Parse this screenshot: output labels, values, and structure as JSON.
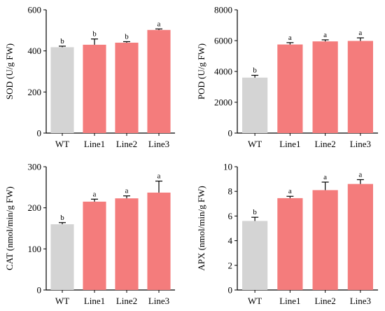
{
  "colors": {
    "wt": "#d4d4d4",
    "line": "#f47c7c",
    "axis": "#000000"
  },
  "chart_data": [
    {
      "type": "bar",
      "categories": [
        "WT",
        "Line1",
        "Line2",
        "Line3"
      ],
      "values": [
        418,
        430,
        440,
        502
      ],
      "errors": [
        5,
        28,
        5,
        5
      ],
      "letters": [
        "b",
        "b",
        "b",
        "a"
      ],
      "ylabel": "SOD (U/g FW)",
      "ylim": [
        0,
        600
      ],
      "yticks": [
        "0",
        "200",
        "400",
        "600"
      ],
      "ytick_values": [
        0,
        200,
        400,
        600
      ]
    },
    {
      "type": "bar",
      "categories": [
        "WT",
        "Line1",
        "Line2",
        "Line3"
      ],
      "values": [
        3600,
        5750,
        5950,
        5980
      ],
      "errors": [
        150,
        120,
        100,
        200
      ],
      "letters": [
        "b",
        "a",
        "a",
        "a"
      ],
      "ylabel": "POD (U/g FW)",
      "ylim": [
        0,
        8000
      ],
      "yticks": [
        "0",
        "2000",
        "4000",
        "6000",
        "8000"
      ],
      "ytick_values": [
        0,
        2000,
        4000,
        6000,
        8000
      ]
    },
    {
      "type": "bar",
      "categories": [
        "WT",
        "Line1",
        "Line2",
        "Line3"
      ],
      "values": [
        160,
        215,
        223,
        237
      ],
      "errors": [
        4,
        6,
        6,
        28
      ],
      "letters": [
        "b",
        "a",
        "a",
        "a"
      ],
      "ylabel": "CAT (nmol/min/g FW)",
      "ylim": [
        0,
        300
      ],
      "yticks": [
        "0",
        "100",
        "200",
        "300"
      ],
      "ytick_values": [
        0,
        100,
        200,
        300
      ]
    },
    {
      "type": "bar",
      "categories": [
        "WT",
        "Line1",
        "Line2",
        "Line3"
      ],
      "values": [
        5.6,
        7.45,
        8.1,
        8.6
      ],
      "errors": [
        0.3,
        0.15,
        0.65,
        0.35
      ],
      "letters": [
        "b",
        "a",
        "a",
        "a"
      ],
      "ylabel": "APX (nmol/min/g FW)",
      "ylim": [
        0,
        10
      ],
      "yticks": [
        "0",
        "2",
        "4",
        "6",
        "8",
        "10"
      ],
      "ytick_values": [
        0,
        2,
        4,
        6,
        8,
        10
      ]
    }
  ]
}
